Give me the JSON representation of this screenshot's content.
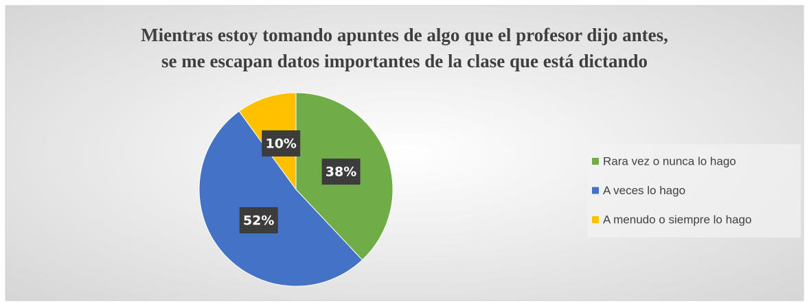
{
  "chart_data": {
    "type": "pie",
    "title": [
      "Mientras estoy tomando apuntes de algo que el profesor dijo antes,",
      "se me escapan datos importantes de la clase que está dictando"
    ],
    "categories": [
      "Rara vez o nunca lo hago",
      "A veces lo hago",
      "A menudo o siempre lo hago"
    ],
    "values": [
      38,
      52,
      10
    ],
    "value_labels": [
      "38%",
      "52%",
      "10%"
    ],
    "colors": [
      "#70ad47",
      "#4472c4",
      "#ffc000"
    ],
    "legend": "right"
  }
}
